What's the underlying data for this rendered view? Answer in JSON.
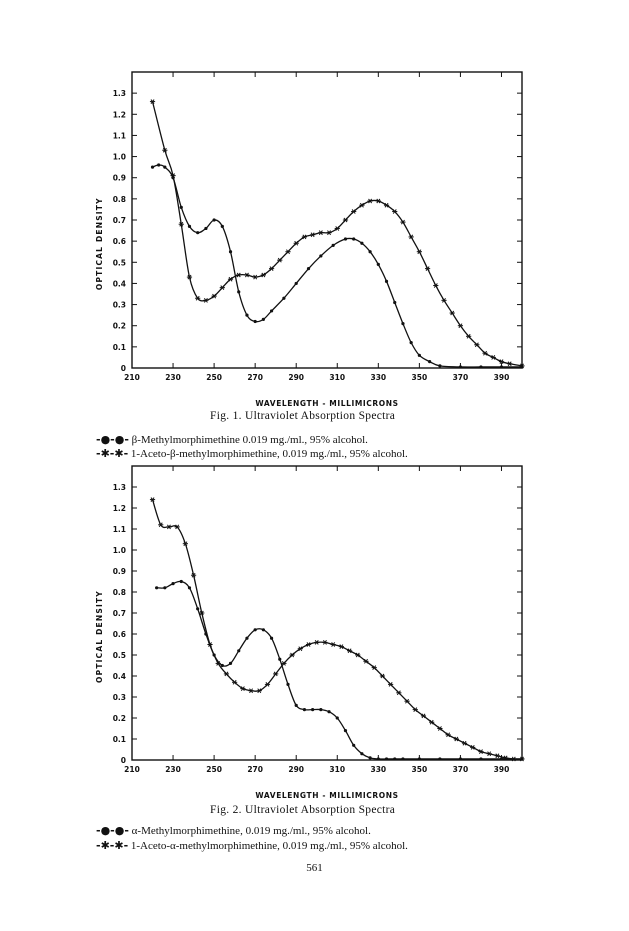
{
  "page_number": "561",
  "chart_data": [
    {
      "type": "line",
      "ylabel": "OPTICAL DENSITY",
      "xlabel": "WAVELENGTH - MILLIMICRONS",
      "caption": "Fig. 1. Ultraviolet Absorption Spectra",
      "xlim": [
        210,
        400
      ],
      "ylim": [
        0,
        1.4
      ],
      "x_ticks": [
        210,
        230,
        250,
        270,
        290,
        310,
        330,
        350,
        370,
        390
      ],
      "y_ticks": [
        0,
        0.1,
        0.2,
        0.3,
        0.4,
        0.5,
        0.6,
        0.7,
        0.8,
        0.9,
        1.0,
        1.1,
        1.2,
        1.3
      ],
      "y_tick_labels": [
        "0",
        "0.1",
        "0.2",
        "0.3",
        "0.4",
        "0.5",
        "0.6",
        "0.7",
        "0.8",
        "0.9",
        "1.0",
        "1.1",
        "1.2",
        "1.3"
      ],
      "grid": false,
      "legend": [
        {
          "symbol": "-●-●-",
          "text": "β-Methylmorphimethine 0.019 mg./ml., 95% alcohol."
        },
        {
          "symbol": "-✱-✱-",
          "text": "1-Aceto-β-methylmorphimethine, 0.019 mg./ml., 95% alcohol."
        }
      ],
      "series": [
        {
          "marker": "dot",
          "x": [
            220,
            223,
            226,
            230,
            234,
            238,
            242,
            246,
            250,
            254,
            258,
            262,
            266,
            270,
            274,
            278,
            284,
            290,
            296,
            302,
            308,
            314,
            318,
            322,
            326,
            330,
            334,
            338,
            342,
            346,
            350,
            355,
            360,
            370,
            380,
            390,
            400
          ],
          "y": [
            0.95,
            0.96,
            0.95,
            0.9,
            0.76,
            0.67,
            0.64,
            0.66,
            0.7,
            0.67,
            0.55,
            0.36,
            0.25,
            0.22,
            0.23,
            0.27,
            0.33,
            0.4,
            0.47,
            0.53,
            0.58,
            0.61,
            0.61,
            0.59,
            0.55,
            0.49,
            0.41,
            0.31,
            0.21,
            0.12,
            0.06,
            0.03,
            0.01,
            0.005,
            0.005,
            0.005,
            0.005
          ]
        },
        {
          "marker": "star",
          "x": [
            220,
            226,
            230,
            234,
            238,
            242,
            246,
            250,
            254,
            258,
            262,
            266,
            270,
            274,
            278,
            282,
            286,
            290,
            294,
            298,
            302,
            306,
            310,
            314,
            318,
            322,
            326,
            330,
            334,
            338,
            342,
            346,
            350,
            354,
            358,
            362,
            366,
            370,
            374,
            378,
            382,
            386,
            390,
            394,
            400
          ],
          "y": [
            1.26,
            1.03,
            0.91,
            0.68,
            0.43,
            0.33,
            0.32,
            0.34,
            0.38,
            0.42,
            0.44,
            0.44,
            0.43,
            0.44,
            0.47,
            0.51,
            0.55,
            0.59,
            0.62,
            0.63,
            0.64,
            0.64,
            0.66,
            0.7,
            0.74,
            0.77,
            0.79,
            0.79,
            0.77,
            0.74,
            0.69,
            0.62,
            0.55,
            0.47,
            0.39,
            0.32,
            0.26,
            0.2,
            0.15,
            0.11,
            0.07,
            0.05,
            0.03,
            0.02,
            0.01
          ]
        }
      ]
    },
    {
      "type": "line",
      "ylabel": "OPTICAL DENSITY",
      "xlabel": "WAVELENGTH - MILLIMICRONS",
      "caption": "Fig. 2. Ultraviolet Absorption Spectra",
      "xlim": [
        210,
        400
      ],
      "ylim": [
        0,
        1.4
      ],
      "x_ticks": [
        210,
        230,
        250,
        270,
        290,
        310,
        330,
        350,
        370,
        390
      ],
      "y_ticks": [
        0,
        0.1,
        0.2,
        0.3,
        0.4,
        0.5,
        0.6,
        0.7,
        0.8,
        0.9,
        1.0,
        1.1,
        1.2,
        1.3
      ],
      "y_tick_labels": [
        "0",
        "0.1",
        "0.2",
        "0.3",
        "0.4",
        "0.5",
        "0.6",
        "0.7",
        "0.8",
        "0.9",
        "1.0",
        "1.1",
        "1.2",
        "1.3"
      ],
      "grid": false,
      "legend": [
        {
          "symbol": "-●-●-",
          "text": "α-Methylmorphimethine, 0.019 mg./ml., 95% alcohol."
        },
        {
          "symbol": "-✱-✱-",
          "text": "1-Aceto-α-methylmorphimethine, 0.019 mg./ml., 95% alcohol."
        }
      ],
      "series": [
        {
          "marker": "dot",
          "x": [
            222,
            226,
            230,
            234,
            238,
            242,
            246,
            250,
            254,
            258,
            262,
            266,
            270,
            274,
            278,
            282,
            286,
            290,
            294,
            298,
            302,
            306,
            310,
            314,
            318,
            322,
            326,
            330,
            334,
            338,
            342,
            350,
            360,
            370,
            380,
            390,
            400
          ],
          "y": [
            0.82,
            0.82,
            0.84,
            0.85,
            0.82,
            0.72,
            0.6,
            0.5,
            0.45,
            0.46,
            0.52,
            0.58,
            0.62,
            0.62,
            0.58,
            0.48,
            0.36,
            0.26,
            0.24,
            0.24,
            0.24,
            0.23,
            0.2,
            0.14,
            0.07,
            0.03,
            0.01,
            0.005,
            0.005,
            0.005,
            0.005,
            0.005,
            0.005,
            0.005,
            0.005,
            0.005,
            0.005
          ]
        },
        {
          "marker": "star",
          "x": [
            220,
            224,
            228,
            232,
            236,
            240,
            244,
            248,
            252,
            256,
            260,
            264,
            268,
            272,
            276,
            280,
            284,
            288,
            292,
            296,
            300,
            304,
            308,
            312,
            316,
            320,
            324,
            328,
            332,
            336,
            340,
            344,
            348,
            352,
            356,
            360,
            364,
            368,
            372,
            376,
            380,
            384,
            388,
            392,
            396,
            400
          ],
          "y": [
            1.24,
            1.12,
            1.11,
            1.11,
            1.03,
            0.88,
            0.7,
            0.55,
            0.46,
            0.41,
            0.37,
            0.34,
            0.33,
            0.33,
            0.36,
            0.41,
            0.46,
            0.5,
            0.53,
            0.55,
            0.56,
            0.56,
            0.55,
            0.54,
            0.52,
            0.5,
            0.47,
            0.44,
            0.4,
            0.36,
            0.32,
            0.28,
            0.24,
            0.21,
            0.18,
            0.15,
            0.12,
            0.1,
            0.08,
            0.06,
            0.04,
            0.03,
            0.02,
            0.01,
            0.005,
            0.005
          ]
        }
      ]
    }
  ]
}
